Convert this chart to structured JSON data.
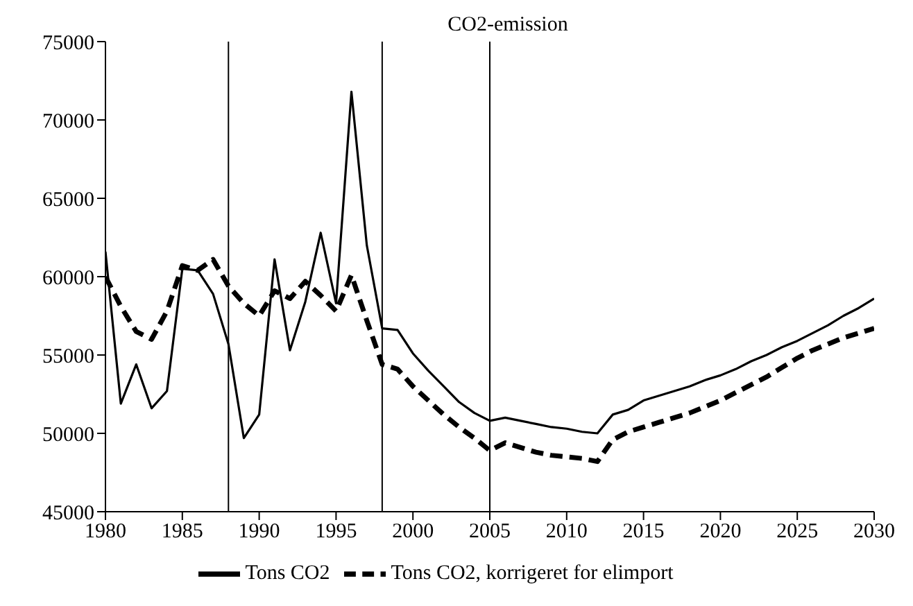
{
  "chart_data": {
    "type": "line",
    "title": "CO2-emission",
    "x": [
      1980,
      1981,
      1982,
      1983,
      1984,
      1985,
      1986,
      1987,
      1988,
      1989,
      1990,
      1991,
      1992,
      1993,
      1994,
      1995,
      1996,
      1997,
      1998,
      1999,
      2000,
      2001,
      2002,
      2003,
      2004,
      2005,
      2006,
      2007,
      2008,
      2009,
      2010,
      2011,
      2012,
      2013,
      2014,
      2015,
      2016,
      2017,
      2018,
      2019,
      2020,
      2021,
      2022,
      2023,
      2024,
      2025,
      2026,
      2027,
      2028,
      2029,
      2030
    ],
    "series": [
      {
        "name": "Tons CO2",
        "color": "#000000",
        "line_style": "solid",
        "values": [
          61600,
          51900,
          54400,
          51600,
          52700,
          60500,
          60400,
          58900,
          55700,
          49700,
          51200,
          61100,
          55300,
          58400,
          62800,
          58300,
          71800,
          62000,
          56700,
          56600,
          55100,
          54000,
          53000,
          52000,
          51300,
          50800,
          51000,
          50800,
          50600,
          50400,
          50300,
          50100,
          50000,
          51200,
          51500,
          52100,
          52400,
          52700,
          53000,
          53400,
          53700,
          54100,
          54600,
          55000,
          55500,
          55900,
          56400,
          56900,
          57500,
          58000,
          58600
        ]
      },
      {
        "name": "Tons CO2, korrigeret for elimport",
        "color": "#000000",
        "line_style": "dashed",
        "values": [
          60000,
          58100,
          56500,
          56000,
          57800,
          60700,
          60400,
          61100,
          59400,
          58300,
          57500,
          59100,
          58600,
          59700,
          58800,
          57800,
          60100,
          57200,
          54400,
          54100,
          53000,
          52100,
          51200,
          50400,
          49700,
          48900,
          49400,
          49100,
          48800,
          48600,
          48500,
          48400,
          48200,
          49600,
          50100,
          50400,
          50700,
          51000,
          51300,
          51700,
          52100,
          52600,
          53100,
          53600,
          54200,
          54800,
          55300,
          55700,
          56100,
          56400,
          56700
        ]
      }
    ],
    "xlim": [
      1980,
      2030
    ],
    "xticks": [
      1980,
      1985,
      1990,
      1995,
      2000,
      2005,
      2010,
      2015,
      2020,
      2025,
      2030
    ],
    "ylim": [
      45000,
      75000
    ],
    "yticks": [
      45000,
      50000,
      55000,
      60000,
      65000,
      70000,
      75000
    ],
    "ref_lines": [
      {
        "axis": "x",
        "value": 1988,
        "color": "#000000"
      },
      {
        "axis": "x",
        "value": 1998,
        "color": "#000000"
      },
      {
        "axis": "x",
        "value": 2005,
        "color": "#000000"
      }
    ],
    "grid": false,
    "legend": "bottom",
    "marker": "none"
  }
}
